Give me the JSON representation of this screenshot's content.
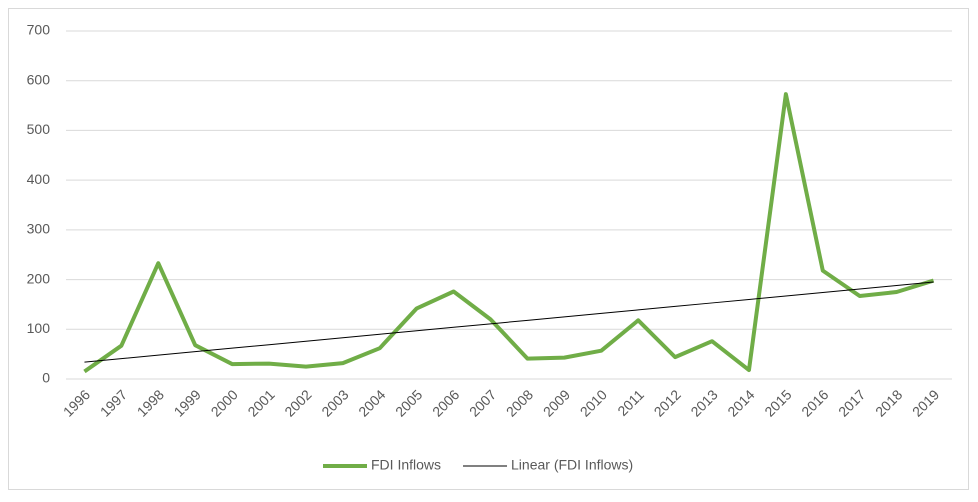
{
  "chart_data": {
    "type": "line",
    "categories": [
      "1996",
      "1997",
      "1998",
      "1999",
      "2000",
      "2001",
      "2002",
      "2003",
      "2004",
      "2005",
      "2006",
      "2007",
      "2008",
      "2009",
      "2010",
      "2011",
      "2012",
      "2013",
      "2014",
      "2015",
      "2016",
      "2017",
      "2018",
      "2019"
    ],
    "series": [
      {
        "name": "FDI Inflows",
        "color": "#70ad47",
        "values": [
          15,
          67,
          233,
          68,
          30,
          31,
          25,
          32,
          62,
          142,
          176,
          120,
          41,
          43,
          57,
          118,
          44,
          76,
          18,
          573,
          218,
          167,
          175,
          198
        ]
      },
      {
        "name": "Linear (FDI Inflows)",
        "color": "#000000",
        "values": [
          34,
          41,
          48,
          55,
          62,
          69,
          76,
          83,
          90,
          97,
          104,
          111,
          118,
          125,
          132,
          139,
          146,
          153,
          160,
          167,
          174,
          181,
          188,
          195
        ]
      }
    ],
    "ylim": [
      0,
      700
    ],
    "yticks": [
      0,
      100,
      200,
      300,
      400,
      500,
      600,
      700
    ],
    "grid": true,
    "legend": "bottom"
  }
}
